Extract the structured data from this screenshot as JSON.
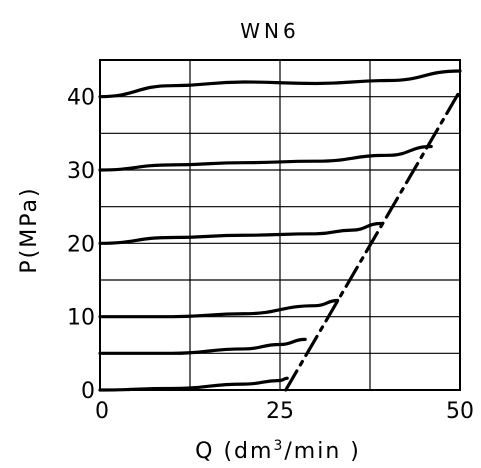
{
  "chart_data": {
    "type": "line",
    "title": "WN6",
    "xlabel_text": "Q (dm",
    "xlabel_sup": "3",
    "xlabel_tail": "/min )",
    "ylabel": "P(MPa)",
    "xlim": [
      0,
      50
    ],
    "ylim": [
      0,
      45
    ],
    "x_ticks": [
      "0",
      "25",
      "50"
    ],
    "y_ticks": [
      "0",
      "10",
      "20",
      "30",
      "40"
    ],
    "grid": true,
    "series": [
      {
        "style": "solid",
        "points": [
          [
            0,
            40.0
          ],
          [
            10,
            41.5
          ],
          [
            20,
            42.0
          ],
          [
            30,
            41.8
          ],
          [
            40,
            42.2
          ],
          [
            50,
            43.5
          ]
        ]
      },
      {
        "style": "solid",
        "points": [
          [
            0,
            30.0
          ],
          [
            10,
            30.7
          ],
          [
            20,
            31.0
          ],
          [
            30,
            31.2
          ],
          [
            40,
            32.0
          ],
          [
            46,
            33.2
          ]
        ]
      },
      {
        "style": "solid",
        "points": [
          [
            0,
            20.0
          ],
          [
            10,
            20.8
          ],
          [
            20,
            21.1
          ],
          [
            30,
            21.3
          ],
          [
            35,
            21.8
          ],
          [
            39,
            22.7
          ]
        ]
      },
      {
        "style": "solid",
        "points": [
          [
            0,
            10.0
          ],
          [
            10,
            10.0
          ],
          [
            20,
            10.4
          ],
          [
            30,
            11.5
          ],
          [
            33,
            12.2
          ]
        ]
      },
      {
        "style": "solid",
        "points": [
          [
            0,
            5.0
          ],
          [
            10,
            5.0
          ],
          [
            20,
            5.6
          ],
          [
            25,
            6.2
          ],
          [
            28.5,
            6.9
          ]
        ]
      },
      {
        "style": "solid",
        "points": [
          [
            0,
            0.0
          ],
          [
            10,
            0.2
          ],
          [
            20,
            0.8
          ],
          [
            25,
            1.3
          ],
          [
            26,
            1.6
          ]
        ]
      },
      {
        "style": "dashdot",
        "points": [
          [
            25.8,
            0
          ],
          [
            50,
            40.8
          ]
        ]
      }
    ]
  }
}
